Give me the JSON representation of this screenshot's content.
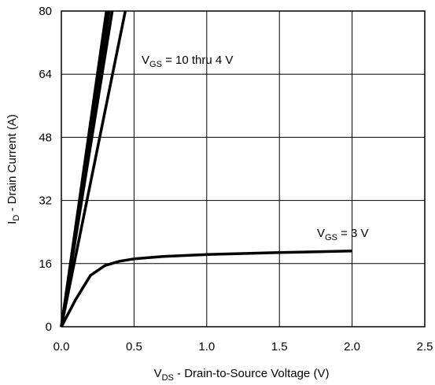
{
  "chart_data": {
    "type": "line",
    "title": "",
    "xlabel": "V",
    "xlabel_sub": "DS",
    "xlabel_rest": " - Drain-to-Source Voltage (V)",
    "ylabel": "I",
    "ylabel_sub": "D",
    "ylabel_rest": " - Drain Current (A)",
    "xlim": [
      0,
      2.5
    ],
    "ylim": [
      0,
      80
    ],
    "xticks": [
      "0.0",
      "0.5",
      "1.0",
      "1.5",
      "2.0",
      "2.5"
    ],
    "yticks": [
      "0",
      "16",
      "32",
      "48",
      "64",
      "80"
    ],
    "grid": true,
    "annotations": [
      {
        "main": "V",
        "sub": "GS",
        "rest": " = 10 thru 4 V"
      },
      {
        "main": "V",
        "sub": "GS",
        "rest": " = 3 V"
      }
    ],
    "series": [
      {
        "x": [
          0,
          0.31
        ],
        "y": [
          0,
          80
        ]
      },
      {
        "x": [
          0,
          0.32
        ],
        "y": [
          0,
          80
        ]
      },
      {
        "x": [
          0,
          0.33
        ],
        "y": [
          0,
          80
        ]
      },
      {
        "x": [
          0,
          0.35
        ],
        "y": [
          0,
          80
        ]
      },
      {
        "x": [
          0,
          0.44
        ],
        "y": [
          0,
          80
        ]
      },
      {
        "x": [
          0,
          0.05,
          0.1,
          0.2,
          0.3,
          0.4,
          0.5,
          0.7,
          1.0,
          1.5,
          2.0
        ],
        "y": [
          0,
          3.5,
          7,
          13,
          15.5,
          16.6,
          17.2,
          17.8,
          18.3,
          18.8,
          19.2
        ]
      }
    ]
  }
}
